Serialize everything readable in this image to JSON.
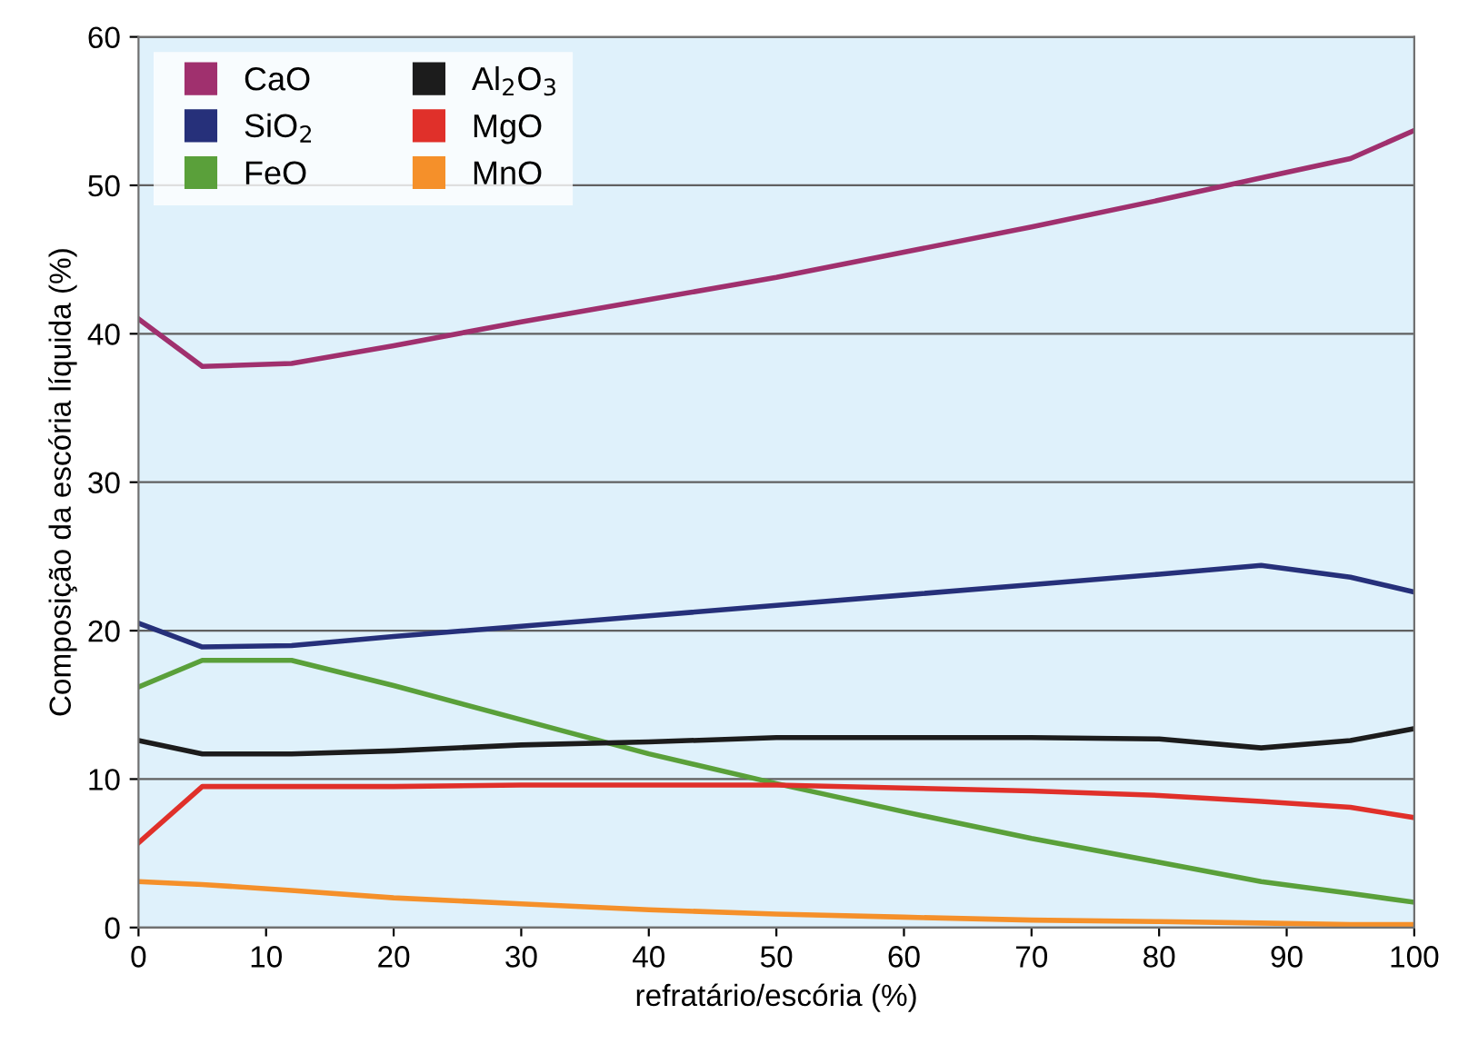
{
  "chart_data": {
    "type": "line",
    "xlabel": "refratário/escória (%)",
    "ylabel": "Composição da escória líquida (%)",
    "x": [
      0,
      5,
      12,
      20,
      30,
      40,
      50,
      60,
      70,
      80,
      88,
      95,
      100
    ],
    "series": [
      {
        "name": "CaO",
        "color": "#a0306e",
        "values": [
          41,
          37.8,
          38,
          39.2,
          40.8,
          42.3,
          43.8,
          45.5,
          47.2,
          49,
          50.5,
          51.8,
          53.7
        ]
      },
      {
        "name": "SiO$_{2}$",
        "color": "#26307a",
        "values": [
          20.5,
          18.9,
          19,
          19.6,
          20.3,
          21,
          21.7,
          22.4,
          23.1,
          23.8,
          24.4,
          23.6,
          22.6
        ]
      },
      {
        "name": "FeO",
        "color": "#5aa03a",
        "values": [
          16.2,
          18,
          18,
          16.3,
          14,
          11.7,
          9.7,
          7.8,
          6,
          4.4,
          3.1,
          2.3,
          1.7
        ]
      },
      {
        "name": "Al$_{2}$O$_{3}$",
        "color": "#1c1c1c",
        "values": [
          12.6,
          11.7,
          11.7,
          11.9,
          12.3,
          12.5,
          12.8,
          12.8,
          12.8,
          12.7,
          12.1,
          12.6,
          13.4
        ]
      },
      {
        "name": "MgO",
        "color": "#e0302a",
        "values": [
          5.7,
          9.5,
          9.5,
          9.5,
          9.6,
          9.6,
          9.6,
          9.4,
          9.2,
          8.9,
          8.5,
          8.1,
          7.4
        ]
      },
      {
        "name": "MnO",
        "color": "#f5902a",
        "values": [
          3.1,
          2.9,
          2.5,
          2,
          1.6,
          1.2,
          0.9,
          0.7,
          0.5,
          0.4,
          0.3,
          0.2,
          0.2
        ]
      }
    ],
    "xlim": [
      0,
      100
    ],
    "xticks": [
      0,
      10,
      20,
      30,
      40,
      50,
      60,
      70,
      80,
      90,
      100
    ],
    "ylim": [
      0,
      60
    ],
    "yticks": [
      0,
      10,
      20,
      30,
      40,
      50,
      60
    ],
    "grid": "y",
    "legend": "top left",
    "marker": "none",
    "line_style": "solid"
  }
}
